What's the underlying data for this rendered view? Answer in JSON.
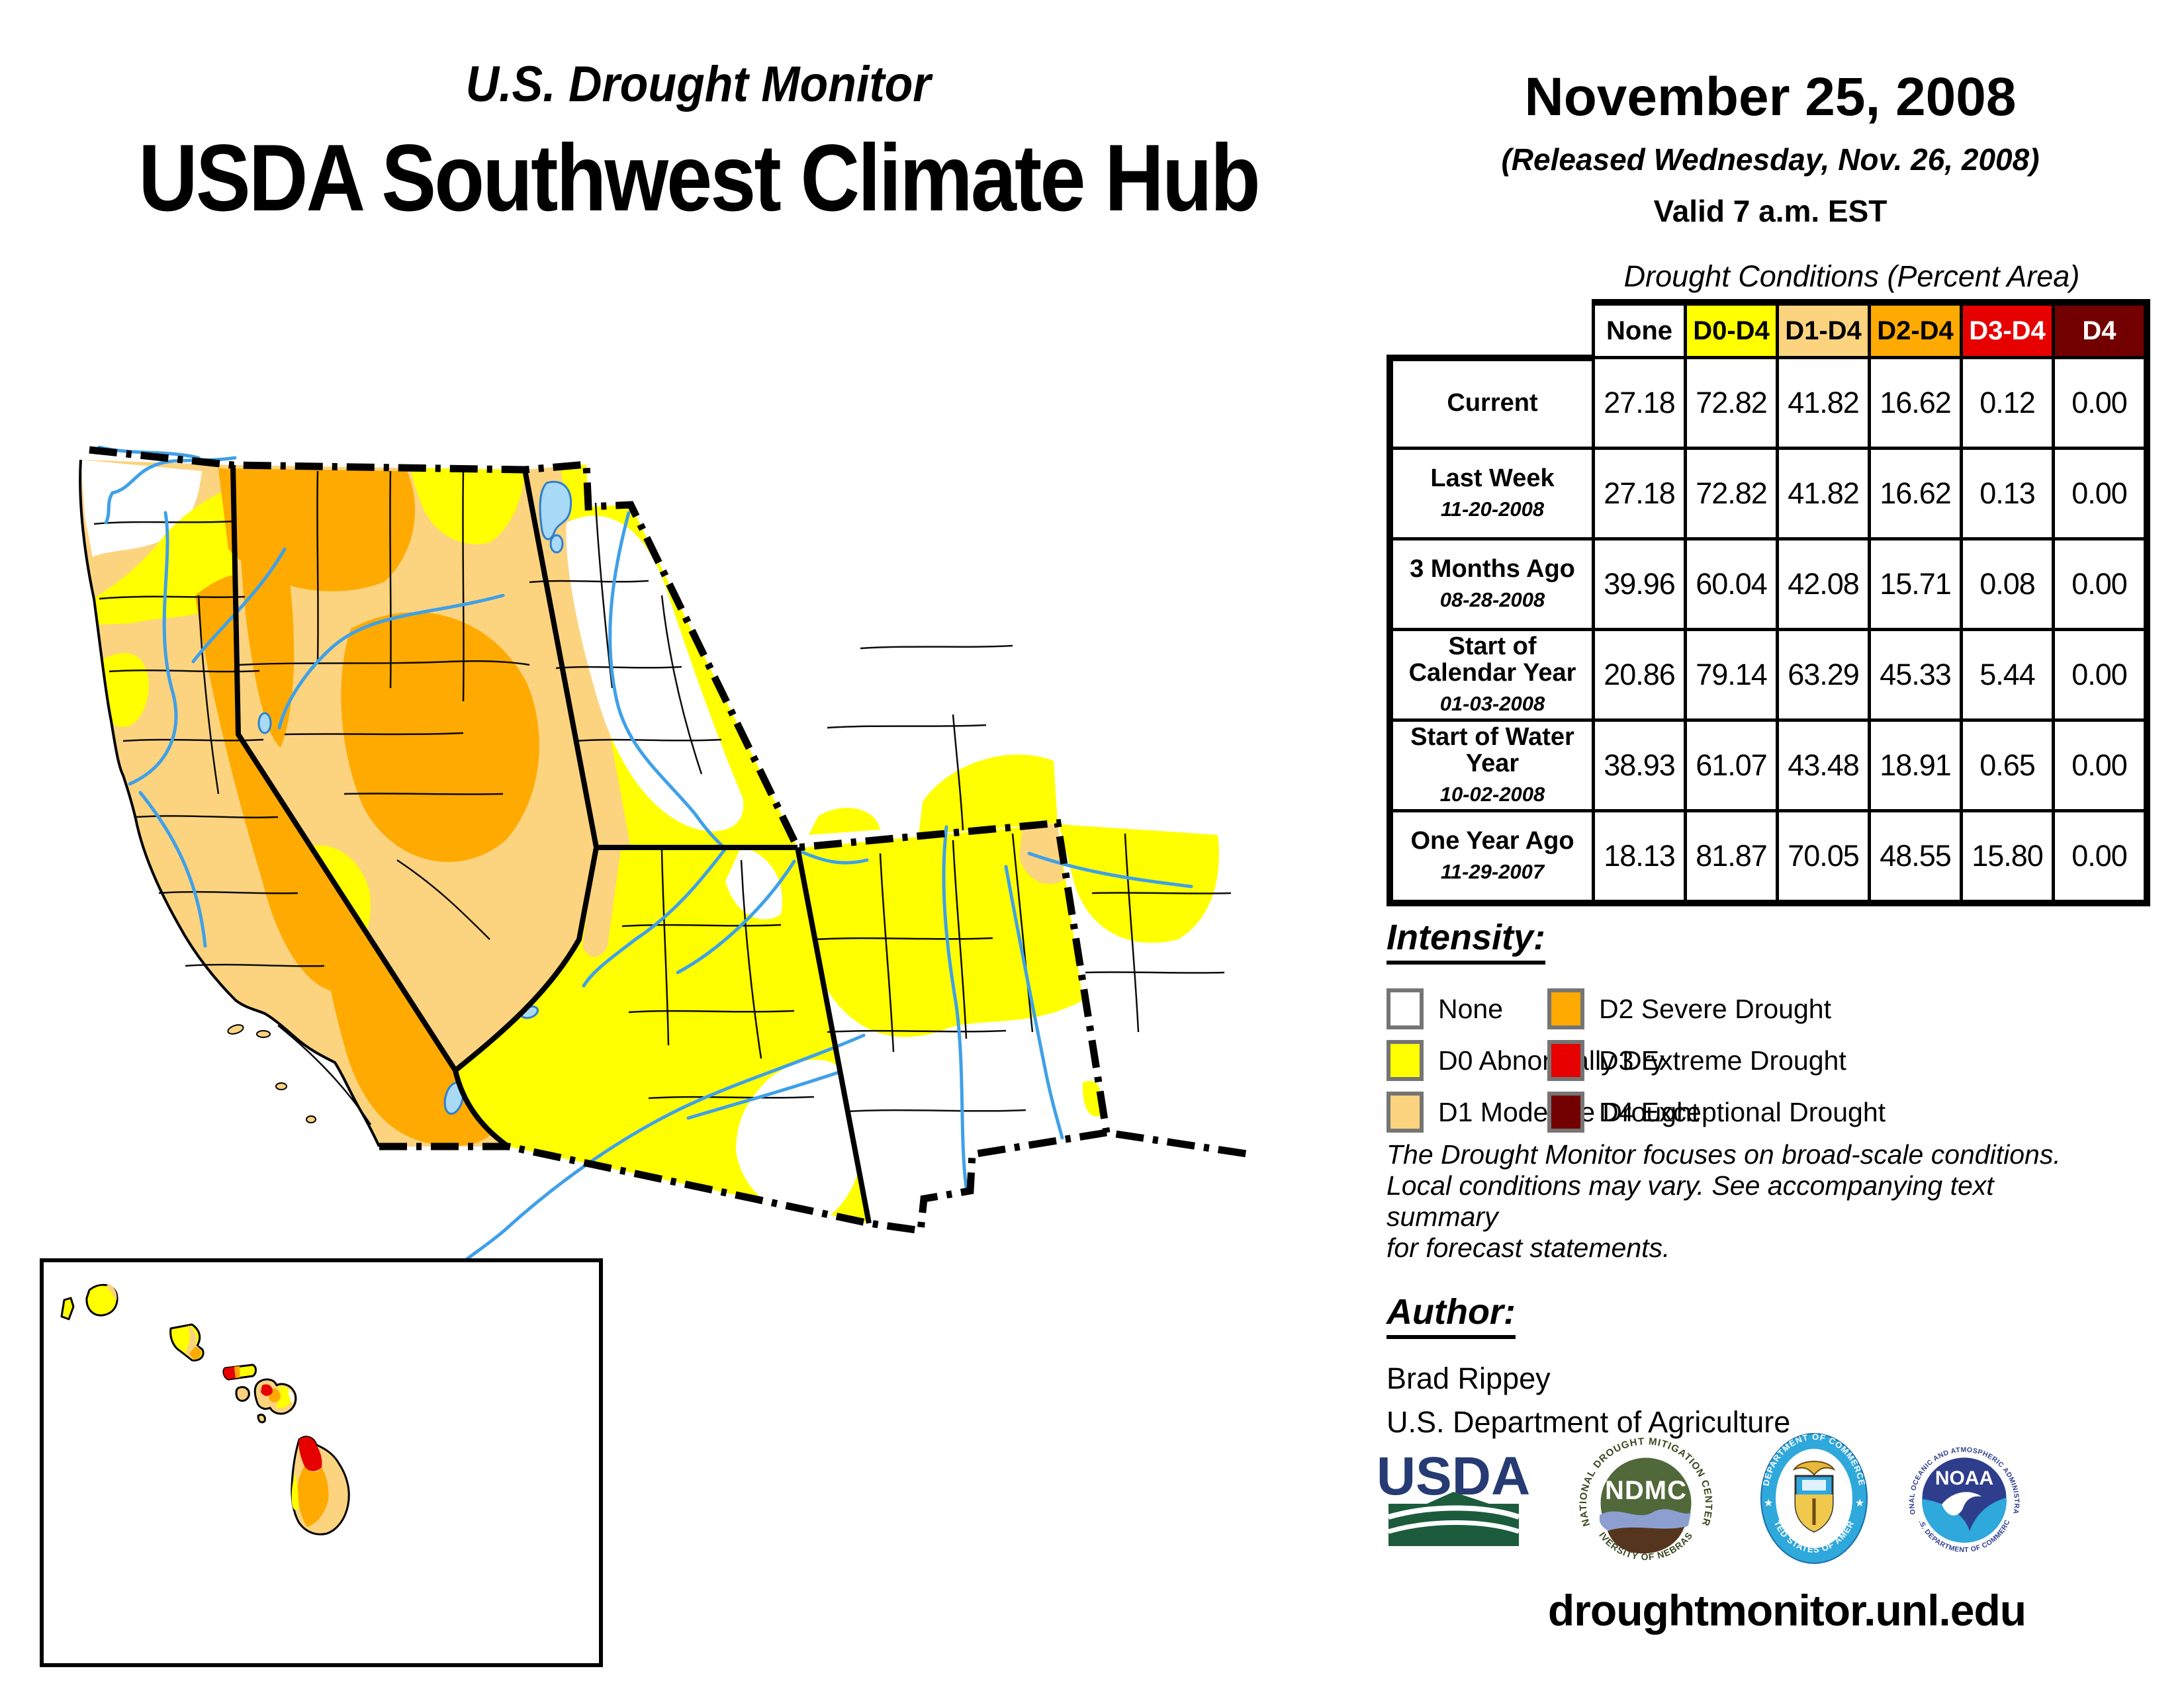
{
  "header": {
    "program": "U.S. Drought Monitor",
    "region": "USDA Southwest Climate Hub",
    "date": "November 25, 2008",
    "released": "(Released Wednesday, Nov. 26, 2008)",
    "valid": "Valid 7 a.m. EST"
  },
  "table": {
    "caption": "Drought Conditions (Percent Area)",
    "columns": [
      {
        "label": "None",
        "bg": "#FFFFFF",
        "fg": "#000000"
      },
      {
        "label": "D0-D4",
        "bg": "#FFFF00",
        "fg": "#000000"
      },
      {
        "label": "D1-D4",
        "bg": "#FCD37F",
        "fg": "#000000"
      },
      {
        "label": "D2-D4",
        "bg": "#FFAA00",
        "fg": "#000000"
      },
      {
        "label": "D3-D4",
        "bg": "#E60000",
        "fg": "#FFFFFF"
      },
      {
        "label": "D4",
        "bg": "#730000",
        "fg": "#FFFFFF"
      }
    ],
    "rows": [
      {
        "label": "Current",
        "date": "",
        "values": [
          "27.18",
          "72.82",
          "41.82",
          "16.62",
          "0.12",
          "0.00"
        ]
      },
      {
        "label": "Last Week",
        "date": "11-20-2008",
        "values": [
          "27.18",
          "72.82",
          "41.82",
          "16.62",
          "0.13",
          "0.00"
        ]
      },
      {
        "label": "3 Months Ago",
        "date": "08-28-2008",
        "values": [
          "39.96",
          "60.04",
          "42.08",
          "15.71",
          "0.08",
          "0.00"
        ]
      },
      {
        "label": "Start of Calendar Year",
        "date": "01-03-2008",
        "values": [
          "20.86",
          "79.14",
          "63.29",
          "45.33",
          "5.44",
          "0.00"
        ]
      },
      {
        "label": "Start of Water Year",
        "date": "10-02-2008",
        "values": [
          "38.93",
          "61.07",
          "43.48",
          "18.91",
          "0.65",
          "0.00"
        ]
      },
      {
        "label": "One Year Ago",
        "date": "11-29-2007",
        "values": [
          "18.13",
          "81.87",
          "70.05",
          "48.55",
          "15.80",
          "0.00"
        ]
      }
    ]
  },
  "intensity": {
    "heading": "Intensity:",
    "items": [
      {
        "label": "None",
        "color": "#FFFFFF"
      },
      {
        "label": "D0 Abnormally Dry",
        "color": "#FFFF00"
      },
      {
        "label": "D1 Moderate Drought",
        "color": "#FCD37F"
      },
      {
        "label": "D2 Severe Drought",
        "color": "#FFAA00"
      },
      {
        "label": "D3 Extreme Drought",
        "color": "#E60000"
      },
      {
        "label": "D4 Exceptional Drought",
        "color": "#730000"
      }
    ]
  },
  "notes": {
    "lines": [
      "The Drought Monitor focuses on broad-scale conditions.",
      "Local conditions may vary. See accompanying text summary",
      "for forecast statements."
    ]
  },
  "author": {
    "heading": "Author:",
    "name": "Brad Rippey",
    "org": "U.S. Department of Agriculture"
  },
  "footer": {
    "url": "droughtmonitor.unl.edu"
  },
  "logos": {
    "usda": {
      "text": "USDA"
    },
    "ndmc": {
      "text": "NDMC",
      "top": "NATIONAL DROUGHT MITIGATION CENTER",
      "bottom": "UNIVERSITY OF NEBRASKA"
    },
    "doc": {
      "top": "DEPARTMENT OF COMMERCE",
      "bottom": "UNITED STATES OF AMERICA"
    },
    "noaa": {
      "text": "NOAA",
      "top": "NATIONAL OCEANIC AND ATMOSPHERIC ADMINISTRATION",
      "bottom": "U.S. DEPARTMENT OF COMMERCE"
    }
  },
  "map": {
    "river_color": "#3FA0E8",
    "lake_color": "#A8DAF5",
    "drought_colors": {
      "none": "#FFFFFF",
      "d0": "#FFFF00",
      "d1": "#FCD37F",
      "d2": "#FFAA00",
      "d3": "#E60000",
      "d4": "#730000"
    }
  }
}
